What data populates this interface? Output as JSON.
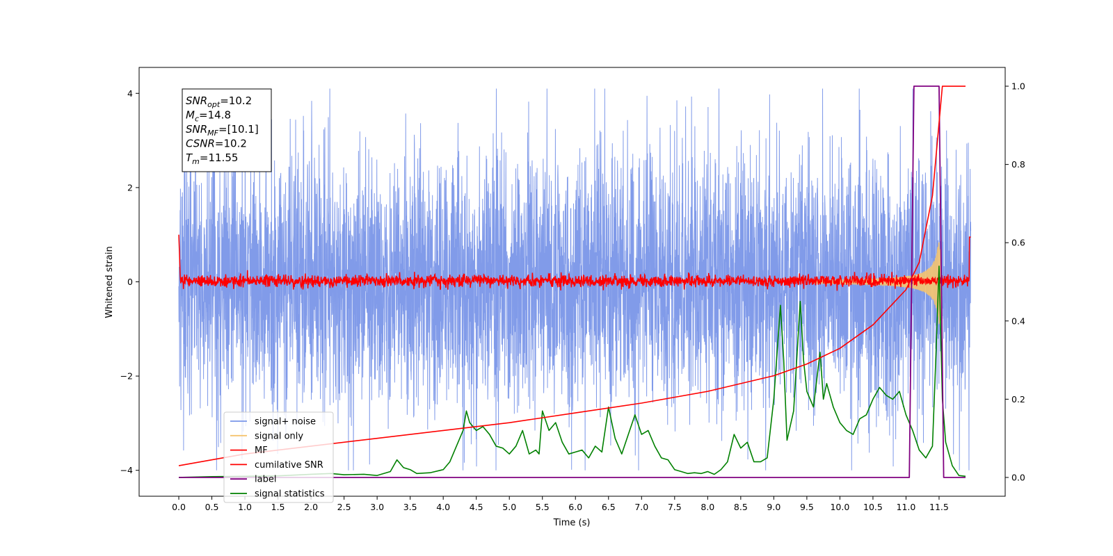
{
  "chart_data": {
    "type": "line",
    "title": "",
    "xlabel": "Time (s)",
    "ylabel": "Whitened strain",
    "xlim": [
      -0.6,
      12.5
    ],
    "ylim": [
      -4.55,
      4.55
    ],
    "y2lim": [
      -0.048,
      1.048
    ],
    "x_ticks": [
      "0.0",
      "0.5",
      "1.0",
      "1.5",
      "2.0",
      "2.5",
      "3.0",
      "3.5",
      "4.0",
      "4.5",
      "5.0",
      "5.5",
      "6.0",
      "6.5",
      "7.0",
      "7.5",
      "8.0",
      "8.5",
      "9.0",
      "9.5",
      "10.0",
      "10.5",
      "11.0",
      "11.5"
    ],
    "y_ticks": [
      "4",
      "2",
      "0",
      "−2",
      "−4"
    ],
    "y2_ticks": [
      "1.0",
      "0.8",
      "0.6",
      "0.4",
      "0.2",
      "0.0"
    ],
    "grid": false,
    "legend_position": "lower-left",
    "info_box": [
      {
        "name": "SNR",
        "sub": "opt",
        "value": "=10.2"
      },
      {
        "name": "M",
        "sub": "c",
        "value": "=14.8"
      },
      {
        "name": "SNR",
        "sub": "MF",
        "value": "=[10.1]"
      },
      {
        "name": "CSNR",
        "sub": "",
        "value": "=10.2"
      },
      {
        "name": "T",
        "sub": "m",
        "value": "=11.55"
      }
    ],
    "series": [
      {
        "name": "signal+ noise",
        "color": "#7a96e8",
        "axis": "left",
        "approx_range": [
          -4.0,
          4.1
        ]
      },
      {
        "name": "signal only",
        "color": "#f5c46e",
        "axis": "left",
        "approx_peak_x": 11.55,
        "approx_peak_amplitude": 0.9
      },
      {
        "name": "MF",
        "color": "#ff0000",
        "axis": "left",
        "approx_range": [
          -0.2,
          0.3
        ]
      },
      {
        "name": "cumilative SNR",
        "color": "#ff0000",
        "axis": "right",
        "x": [
          0.0,
          1.0,
          2.0,
          3.0,
          4.0,
          5.0,
          6.0,
          7.0,
          8.0,
          9.0,
          9.5,
          10.0,
          10.5,
          11.0,
          11.2,
          11.4,
          11.55,
          11.6,
          11.9
        ],
        "y": [
          0.03,
          0.06,
          0.08,
          0.1,
          0.12,
          0.14,
          0.165,
          0.19,
          0.22,
          0.26,
          0.29,
          0.33,
          0.39,
          0.48,
          0.55,
          0.72,
          1.0,
          1.0,
          1.0
        ]
      },
      {
        "name": "label",
        "color": "#800080",
        "axis": "right",
        "x": [
          0.0,
          11.05,
          11.12,
          11.5,
          11.57,
          11.9
        ],
        "y": [
          0.0,
          0.0,
          1.0,
          1.0,
          0.0,
          0.0
        ]
      },
      {
        "name": "signal statistics",
        "color": "#008000",
        "axis": "right",
        "x": [
          0.0,
          0.5,
          1.0,
          1.5,
          2.0,
          2.3,
          2.5,
          2.8,
          3.0,
          3.2,
          3.3,
          3.4,
          3.5,
          3.6,
          3.8,
          4.0,
          4.1,
          4.2,
          4.3,
          4.35,
          4.4,
          4.5,
          4.6,
          4.7,
          4.8,
          4.9,
          5.0,
          5.1,
          5.2,
          5.3,
          5.4,
          5.45,
          5.5,
          5.6,
          5.7,
          5.8,
          5.9,
          6.0,
          6.1,
          6.2,
          6.3,
          6.4,
          6.5,
          6.6,
          6.7,
          6.8,
          6.9,
          7.0,
          7.1,
          7.2,
          7.3,
          7.4,
          7.5,
          7.6,
          7.7,
          7.8,
          7.9,
          8.0,
          8.1,
          8.2,
          8.3,
          8.4,
          8.5,
          8.6,
          8.7,
          8.8,
          8.9,
          9.0,
          9.05,
          9.1,
          9.15,
          9.2,
          9.3,
          9.4,
          9.45,
          9.5,
          9.6,
          9.7,
          9.75,
          9.8,
          9.9,
          10.0,
          10.1,
          10.2,
          10.3,
          10.4,
          10.5,
          10.6,
          10.7,
          10.8,
          10.9,
          11.0,
          11.1,
          11.2,
          11.3,
          11.4,
          11.45,
          11.5,
          11.55,
          11.6,
          11.7,
          11.8,
          11.9
        ],
        "y": [
          0.0,
          0.002,
          0.003,
          0.004,
          0.008,
          0.01,
          0.007,
          0.008,
          0.005,
          0.015,
          0.045,
          0.025,
          0.02,
          0.01,
          0.012,
          0.02,
          0.04,
          0.08,
          0.12,
          0.17,
          0.14,
          0.12,
          0.13,
          0.11,
          0.08,
          0.075,
          0.06,
          0.08,
          0.12,
          0.06,
          0.07,
          0.06,
          0.17,
          0.12,
          0.14,
          0.09,
          0.06,
          0.065,
          0.07,
          0.05,
          0.08,
          0.065,
          0.18,
          0.1,
          0.06,
          0.11,
          0.16,
          0.11,
          0.12,
          0.08,
          0.05,
          0.045,
          0.02,
          0.015,
          0.01,
          0.012,
          0.01,
          0.015,
          0.008,
          0.02,
          0.04,
          0.11,
          0.075,
          0.09,
          0.04,
          0.04,
          0.05,
          0.2,
          0.32,
          0.44,
          0.3,
          0.095,
          0.17,
          0.45,
          0.3,
          0.22,
          0.18,
          0.32,
          0.2,
          0.24,
          0.18,
          0.14,
          0.12,
          0.11,
          0.15,
          0.16,
          0.2,
          0.23,
          0.21,
          0.2,
          0.22,
          0.16,
          0.12,
          0.07,
          0.05,
          0.08,
          0.3,
          0.54,
          0.2,
          0.09,
          0.03,
          0.005,
          0.003
        ]
      }
    ]
  }
}
